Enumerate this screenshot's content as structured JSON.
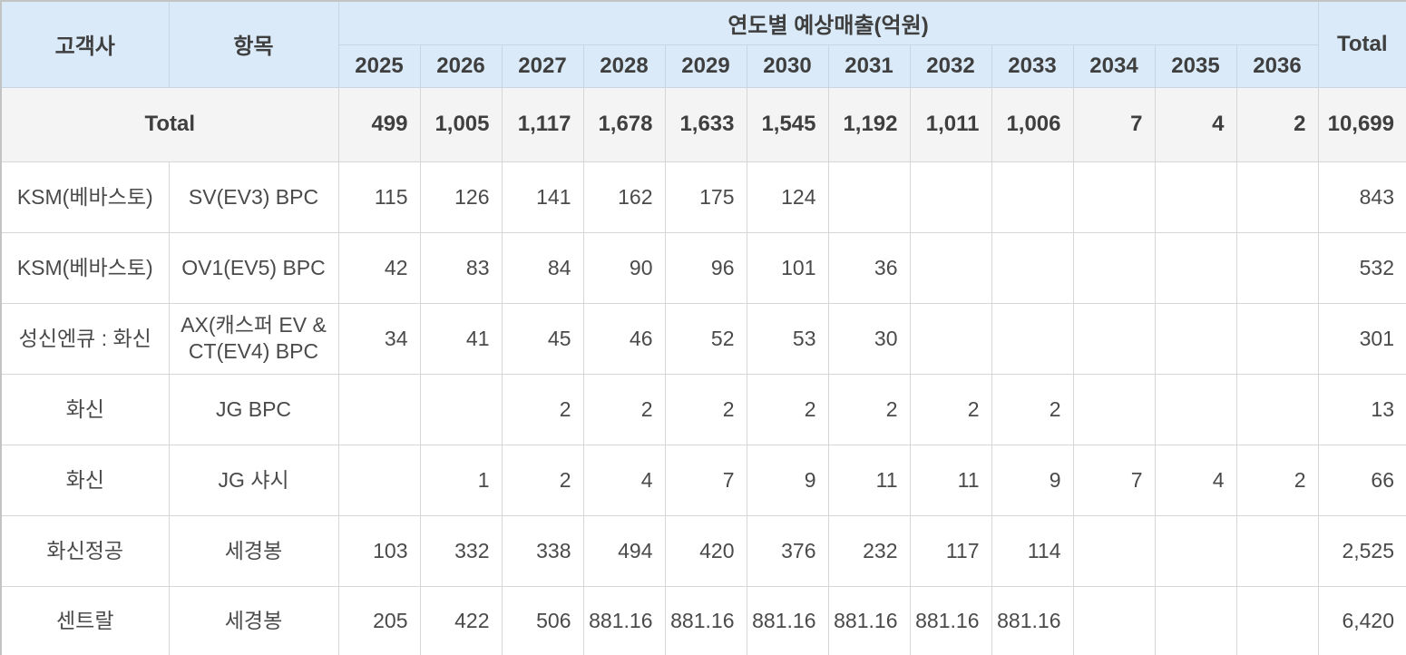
{
  "chart_data": {
    "type": "table",
    "title": "연도별 예상매출(억원)",
    "headers": {
      "customer": "고객사",
      "item": "항목",
      "group": "연도별 예상매출(억원)",
      "total": "Total"
    },
    "years": [
      "2025",
      "2026",
      "2027",
      "2028",
      "2029",
      "2030",
      "2031",
      "2032",
      "2033",
      "2034",
      "2035",
      "2036"
    ],
    "total_row": {
      "label": "Total",
      "values": [
        "499",
        "1,005",
        "1,117",
        "1,678",
        "1,633",
        "1,545",
        "1,192",
        "1,011",
        "1,006",
        "7",
        "4",
        "2"
      ],
      "total": "10,699"
    },
    "rows": [
      {
        "customer": "KSM(베바스토)",
        "item": "SV(EV3) BPC",
        "values": [
          "115",
          "126",
          "141",
          "162",
          "175",
          "124",
          "",
          "",
          "",
          "",
          "",
          ""
        ],
        "total": "843"
      },
      {
        "customer": "KSM(베바스토)",
        "item": "OV1(EV5) BPC",
        "values": [
          "42",
          "83",
          "84",
          "90",
          "96",
          "101",
          "36",
          "",
          "",
          "",
          "",
          ""
        ],
        "total": "532"
      },
      {
        "customer": "성신엔큐 : 화신",
        "item": "AX(캐스퍼 EV & CT(EV4) BPC",
        "values": [
          "34",
          "41",
          "45",
          "46",
          "52",
          "53",
          "30",
          "",
          "",
          "",
          "",
          ""
        ],
        "total": "301"
      },
      {
        "customer": "화신",
        "item": "JG BPC",
        "values": [
          "",
          "",
          "2",
          "2",
          "2",
          "2",
          "2",
          "2",
          "2",
          "",
          "",
          ""
        ],
        "total": "13"
      },
      {
        "customer": "화신",
        "item": "JG 샤시",
        "values": [
          "",
          "1",
          "2",
          "4",
          "7",
          "9",
          "11",
          "11",
          "9",
          "7",
          "4",
          "2"
        ],
        "total": "66"
      },
      {
        "customer": "화신정공",
        "item": "세경봉",
        "values": [
          "103",
          "332",
          "338",
          "494",
          "420",
          "376",
          "232",
          "117",
          "114",
          "",
          "",
          ""
        ],
        "total": "2,525"
      },
      {
        "customer": "센트랄",
        "item": "세경봉",
        "values": [
          "205",
          "422",
          "506",
          "881.16",
          "881.16",
          "881.16",
          "881.16",
          "881.16",
          "881.16",
          "",
          "",
          ""
        ],
        "total": "6,420"
      }
    ]
  },
  "colors": {
    "header_bg": "#daeaf8",
    "total_row_bg": "#f4f4f4",
    "grid": "#d6d6d6",
    "text": "#4a4a4a"
  }
}
